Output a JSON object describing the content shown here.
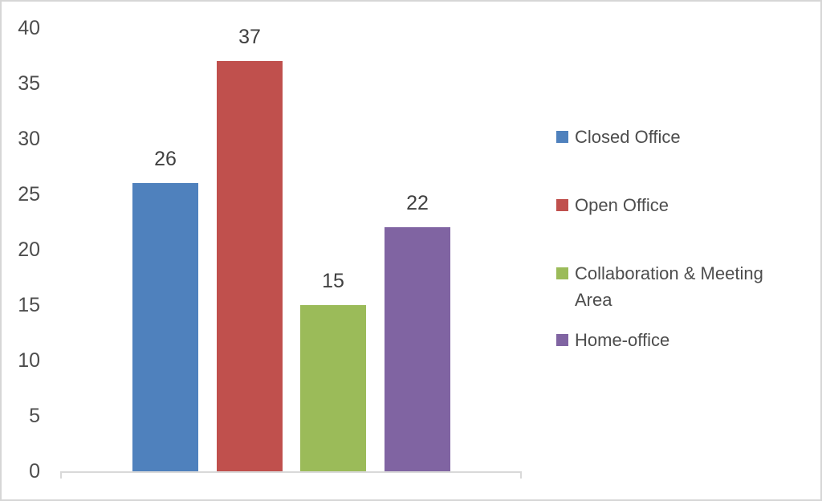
{
  "chart_data": {
    "type": "bar",
    "title": "",
    "xlabel": "",
    "ylabel": "",
    "categories": [
      ""
    ],
    "series": [
      {
        "name": "Closed Office",
        "values": [
          26
        ],
        "color": "#4f81bd"
      },
      {
        "name": "Open Office",
        "values": [
          37
        ],
        "color": "#c0504d"
      },
      {
        "name": "Collaboration & Meeting Area",
        "values": [
          15
        ],
        "color": "#9bbb59"
      },
      {
        "name": "Home-office",
        "values": [
          22
        ],
        "color": "#8064a2"
      }
    ],
    "data_labels": [
      "26",
      "37",
      "15",
      "22"
    ],
    "yticks": [
      0,
      5,
      10,
      15,
      20,
      25,
      30,
      35,
      40
    ],
    "ylim": [
      0,
      40
    ],
    "grid": false,
    "legend_position": "right"
  },
  "colors": {
    "background": "#ffffff",
    "frame_border": "#d6d6d6",
    "axis_line": "#d9d9d9",
    "tick_text": "#4d4d4d",
    "data_label_text": "#404040"
  }
}
